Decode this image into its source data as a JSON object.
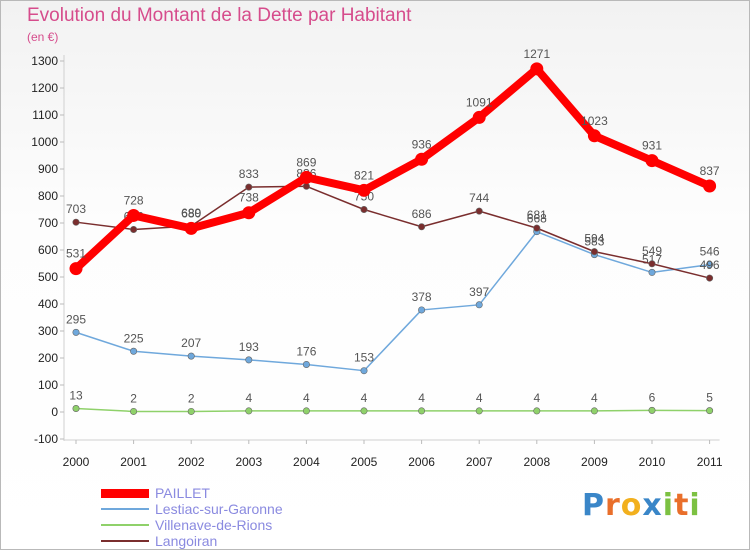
{
  "title": "Evolution du Montant de la Dette par Habitant",
  "unit": "(en €)",
  "brand": {
    "letters": [
      {
        "ch": "P",
        "color": "#3a86c8"
      },
      {
        "ch": "r",
        "color": "#e96f2b"
      },
      {
        "ch": "o",
        "color": "#f2b01e"
      },
      {
        "ch": "x",
        "color": "#3a86c8"
      },
      {
        "ch": "i",
        "color": "#7cc142"
      },
      {
        "ch": "t",
        "color": "#e96f2b"
      },
      {
        "ch": "i",
        "color": "#7cc142"
      }
    ]
  },
  "chart_data": {
    "type": "line",
    "title": "Evolution du Montant de la Dette par Habitant",
    "ylabel": "(en €)",
    "xlabel": "",
    "ylim": [
      -100,
      1300
    ],
    "y_ticks": [
      -100,
      0,
      100,
      200,
      300,
      400,
      500,
      600,
      700,
      800,
      900,
      1000,
      1100,
      1200,
      1300
    ],
    "grid": false,
    "legend_position": "bottom-left",
    "categories": [
      "2000",
      "2001",
      "2002",
      "2003",
      "2004",
      "2005",
      "2006",
      "2007",
      "2008",
      "2009",
      "2010",
      "2011"
    ],
    "series": [
      {
        "name": "PAILLET",
        "color": "#ff0000",
        "emphasis": true,
        "values": [
          531,
          728,
          680,
          738,
          869,
          821,
          936,
          1091,
          1271,
          1023,
          931,
          837
        ]
      },
      {
        "name": "Lestiac-sur-Garonne",
        "color": "#6fa8dc",
        "values": [
          295,
          225,
          207,
          193,
          176,
          153,
          378,
          397,
          668,
          583,
          517,
          546
        ]
      },
      {
        "name": "Villenave-de-Rions",
        "color": "#8fd16a",
        "values": [
          13,
          2,
          2,
          4,
          4,
          4,
          4,
          4,
          4,
          4,
          6,
          5
        ]
      },
      {
        "name": "Langoiran",
        "color": "#7a2e2e",
        "values": [
          703,
          676,
          689,
          833,
          836,
          750,
          686,
          744,
          681,
          594,
          549,
          496
        ]
      }
    ]
  }
}
